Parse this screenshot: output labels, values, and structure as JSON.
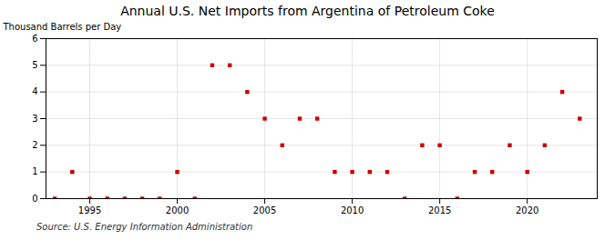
{
  "chart_data": {
    "type": "scatter",
    "title": "Annual U.S. Net Imports from Argentina of Petroleum Coke",
    "ylabel": "Thousand Barrels per Day",
    "source": "Source: U.S. Energy Information Administration",
    "x": [
      1993,
      1994,
      1995,
      1996,
      1997,
      1998,
      1999,
      2000,
      2001,
      2002,
      2003,
      2004,
      2005,
      2006,
      2007,
      2008,
      2009,
      2010,
      2011,
      2012,
      2013,
      2014,
      2015,
      2016,
      2017,
      2018,
      2019,
      2020,
      2021,
      2022,
      2023
    ],
    "values": [
      0,
      1,
      0,
      0,
      0,
      0,
      0,
      1,
      0,
      5,
      5,
      4,
      3,
      2,
      3,
      3,
      1,
      1,
      1,
      1,
      0,
      2,
      2,
      0,
      1,
      1,
      2,
      1,
      2,
      4,
      3
    ],
    "color": "#cc0000",
    "marker": "square",
    "xlim": [
      1992.5,
      2024
    ],
    "xticks": [
      1995,
      2000,
      2005,
      2010,
      2015,
      2020
    ],
    "ylim": [
      0,
      6
    ],
    "yticks": [
      0,
      1,
      2,
      3,
      4,
      5,
      6
    ],
    "grid": true
  }
}
